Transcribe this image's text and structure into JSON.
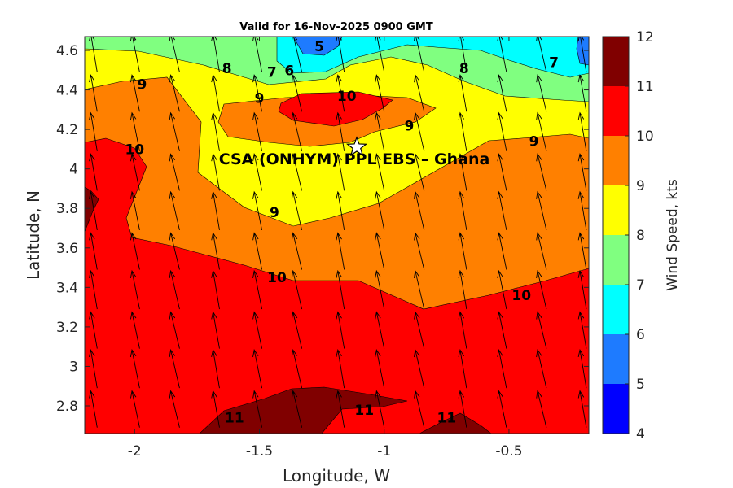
{
  "chart_data": {
    "type": "heatmap",
    "subtype": "filled-contour-with-wind-vectors",
    "title": "Valid for 16-Nov-2025 0900 GMT",
    "xlabel": "Longitude, W",
    "ylabel": "Latitude, N",
    "xlim": [
      -2.2,
      -0.18
    ],
    "ylim": [
      2.66,
      4.67
    ],
    "x_ticks": [
      -2,
      -1.5,
      -1,
      -0.5
    ],
    "x_tick_labels": [
      "-2",
      "-1.5",
      "-1",
      "-0.5"
    ],
    "y_ticks": [
      2.8,
      3.0,
      3.2,
      3.4,
      3.6,
      3.8,
      4.0,
      4.2,
      4.4,
      4.6
    ],
    "y_tick_labels": [
      "2.8",
      "3",
      "3.2",
      "3.4",
      "3.6",
      "3.8",
      "4",
      "4.2",
      "4.4",
      "4.6"
    ],
    "colorbar": {
      "label": "Wind Speed, kts",
      "levels": [
        4,
        5,
        6,
        7,
        8,
        9,
        10,
        11,
        12
      ],
      "level_labels": [
        "4",
        "5",
        "6",
        "7",
        "8",
        "9",
        "10",
        "11",
        "12"
      ],
      "colors": [
        "#0000ff",
        "#1e7bff",
        "#00ffff",
        "#80ff80",
        "#ffff00",
        "#ff8000",
        "#ff0000",
        "#800000"
      ]
    },
    "contour_labels": [
      {
        "text": "5",
        "lon": -1.26,
        "lat": 4.62
      },
      {
        "text": "6",
        "lon": -1.38,
        "lat": 4.5
      },
      {
        "text": "7",
        "lon": -1.45,
        "lat": 4.49
      },
      {
        "text": "8",
        "lon": -1.63,
        "lat": 4.51
      },
      {
        "text": "9",
        "lon": -1.97,
        "lat": 4.43
      },
      {
        "text": "9",
        "lon": -1.5,
        "lat": 4.36
      },
      {
        "text": "10",
        "lon": -1.15,
        "lat": 4.37
      },
      {
        "text": "9",
        "lon": -0.9,
        "lat": 4.22
      },
      {
        "text": "8",
        "lon": -0.68,
        "lat": 4.51
      },
      {
        "text": "7",
        "lon": -0.32,
        "lat": 4.54
      },
      {
        "text": "9",
        "lon": -0.4,
        "lat": 4.14
      },
      {
        "text": "10",
        "lon": -2.0,
        "lat": 4.1
      },
      {
        "text": "9",
        "lon": -1.44,
        "lat": 3.78
      },
      {
        "text": "10",
        "lon": -1.43,
        "lat": 3.45
      },
      {
        "text": "10",
        "lon": -0.45,
        "lat": 3.36
      },
      {
        "text": "11",
        "lon": -1.6,
        "lat": 2.74
      },
      {
        "text": "11",
        "lon": -1.08,
        "lat": 2.78
      },
      {
        "text": "11",
        "lon": -0.75,
        "lat": 2.74
      }
    ],
    "site": {
      "name": "CSA (ONHYM) PPL EBS  – Ghana",
      "lon": -1.11,
      "lat": 4.11,
      "marker": "star"
    },
    "wind_vectors": {
      "lons": [
        -2.15,
        -1.98,
        -1.82,
        -1.66,
        -1.49,
        -1.33,
        -1.16,
        -1.0,
        -0.84,
        -0.67,
        -0.51,
        -0.35,
        -0.19
      ],
      "lats": [
        2.69,
        2.89,
        3.09,
        3.29,
        3.49,
        3.69,
        3.89,
        4.09,
        4.29,
        4.49
      ],
      "direction": "predominantly from the south, veering slightly toward the northwest",
      "color": "#000000"
    }
  }
}
